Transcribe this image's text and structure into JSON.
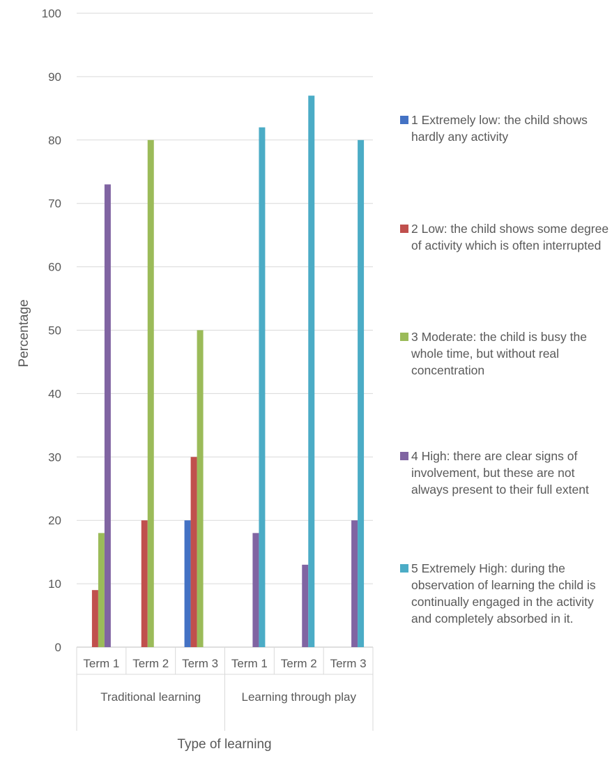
{
  "chart_data": {
    "type": "bar",
    "xlabel": "Type of learning",
    "ylabel": "Percentage",
    "ylim": [
      0,
      100
    ],
    "ytick_step": 10,
    "grid": true,
    "legend_position": "right",
    "groups": [
      {
        "label": "Traditional learning",
        "categories": [
          "Term 1",
          "Term 2",
          "Term 3"
        ]
      },
      {
        "label": "Learning through play",
        "categories": [
          "Term 1",
          "Term 2",
          "Term 3"
        ]
      }
    ],
    "series": [
      {
        "name": "1 Extremely low: the child shows hardly any activity",
        "color": "#4472C4",
        "values": [
          0,
          0,
          20,
          0,
          0,
          0
        ]
      },
      {
        "name": "2 Low: the child shows some degree of activity which is often interrupted",
        "color": "#C0504D",
        "values": [
          9,
          20,
          30,
          0,
          0,
          0
        ]
      },
      {
        "name": "3 Moderate: the child is busy the whole time, but without real concentration",
        "color": "#9BBB59",
        "values": [
          18,
          80,
          50,
          0,
          0,
          0
        ]
      },
      {
        "name": "4 High: there are clear signs of involvement, but these are not always present to their full extent",
        "color": "#8064A2",
        "values": [
          73,
          0,
          0,
          18,
          13,
          20
        ]
      },
      {
        "name": "5 Extremely High: during the observation of learning the child is continually engaged in the activity and completely absorbed in it.",
        "color": "#4BACC6",
        "values": [
          0,
          0,
          0,
          82,
          87,
          80
        ]
      }
    ]
  }
}
